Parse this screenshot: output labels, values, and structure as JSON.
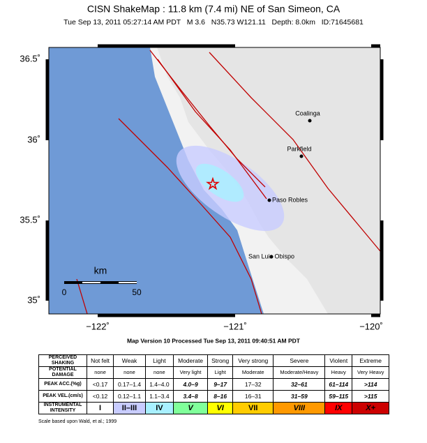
{
  "header": {
    "title": "CISN ShakeMap : 11.8 km (7.4 mi) NE of San Simeon, CA",
    "subtitle": "Tue Sep 13, 2011 05:27:14 AM PDT   M 3.6   N35.73 W121.11   Depth: 8.0km   ID:71645681"
  },
  "map": {
    "lat_labels": [
      "36.5˚",
      "36˚",
      "35.5˚",
      "35˚"
    ],
    "lon_labels": [
      "−122˚",
      "−121˚",
      "−120˚"
    ],
    "places": [
      "Coalinga",
      "Parkfield",
      "Paso Robles",
      "San Luis Obispo"
    ],
    "scale": {
      "unit": "km",
      "labels": [
        "0",
        "50"
      ]
    }
  },
  "version": "Map Version 10 Processed Tue Sep 13, 2011 09:40:51 AM PDT",
  "legend": {
    "rows": [
      [
        "PERCEIVED SHAKING",
        "Not felt",
        "Weak",
        "Light",
        "Moderate",
        "Strong",
        "Very strong",
        "Severe",
        "Violent",
        "Extreme"
      ],
      [
        "POTENTIAL DAMAGE",
        "none",
        "none",
        "none",
        "Very light",
        "Light",
        "Moderate",
        "Moderate/Heavy",
        "Heavy",
        "Very Heavy"
      ],
      [
        "PEAK ACC.(%g)",
        "<0.17",
        "0.17–1.4",
        "1.4–4.0",
        "4.0–9",
        "9–17",
        "17–32",
        "32–61",
        "61–114",
        ">114"
      ],
      [
        "PEAK VEL.(cm/s)",
        "<0.12",
        "0.12–1.1",
        "1.1–3.4",
        "3.4–8",
        "8–16",
        "16–31",
        "31–59",
        "59–115",
        ">115"
      ],
      [
        "INSTRUMENTAL INTENSITY",
        "I",
        "II–III",
        "IV",
        "V",
        "VI",
        "VII",
        "VIII",
        "IX",
        "X+"
      ]
    ],
    "intensity_colors": [
      "#ffffff",
      "#c8ccff",
      "#a8f0ff",
      "#80ff9a",
      "#ffff00",
      "#ffcc00",
      "#ff9900",
      "#ff0000",
      "#cc0000"
    ]
  },
  "note": "Scale based upon Wald, et al.; 1999"
}
